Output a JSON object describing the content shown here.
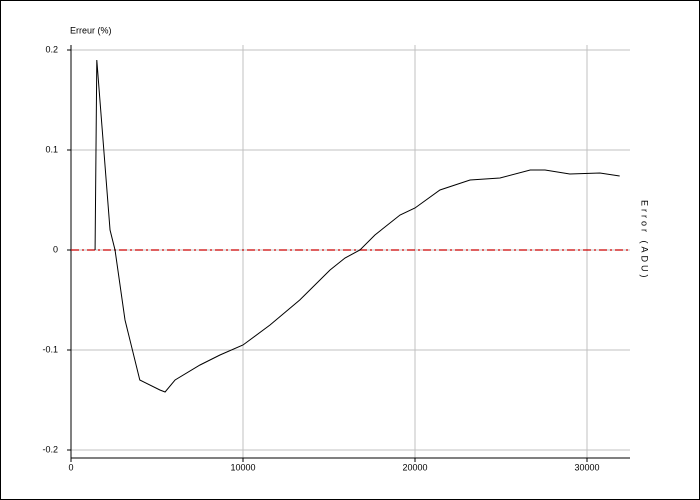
{
  "chart_data": {
    "type": "line",
    "y_label": "Erreur (%)",
    "y2_label": "Error (ADU)",
    "x": [
      1400,
      1500,
      2270,
      2560,
      3140,
      4000,
      5170,
      5470,
      6050,
      7500,
      8660,
      10000,
      11570,
      13300,
      15060,
      15930,
      16800,
      17670,
      19130,
      20000,
      21450,
      23200,
      24940,
      26700,
      27560,
      29000,
      30750,
      31900
    ],
    "series": [
      {
        "color": "#000000",
        "values": [
          0,
          0.19,
          0.02,
          0,
          -0.07,
          -0.13,
          -0.14,
          -0.142,
          -0.13,
          -0.115,
          -0.105,
          -0.095,
          -0.075,
          -0.05,
          -0.02,
          -0.008,
          0,
          0.015,
          0.035,
          0.042,
          0.06,
          0.07,
          0.072,
          0.08,
          0.08,
          0.076,
          0.077,
          0.074
        ]
      }
    ],
    "reference_line": {
      "value": 0,
      "color": "#cc0000"
    },
    "xlim": [
      0,
      32500
    ],
    "ylim": [
      -0.208,
      0.205
    ],
    "xticks": [
      0,
      10000,
      20000,
      30000
    ],
    "yticks": [
      -0.2,
      -0.1,
      0,
      0.1,
      0.2
    ],
    "grid": true
  }
}
